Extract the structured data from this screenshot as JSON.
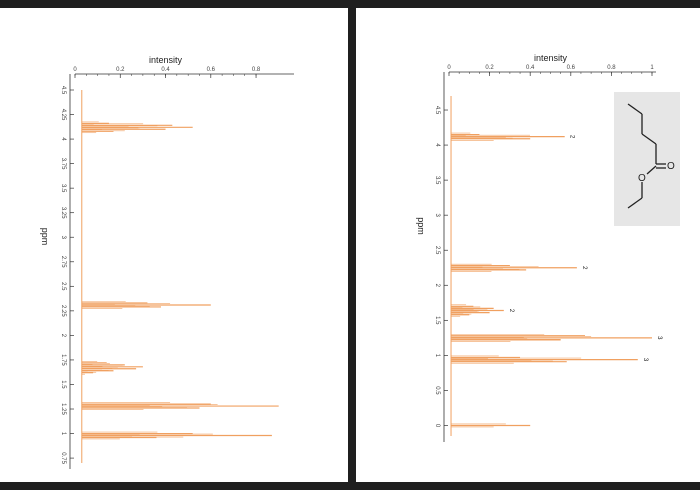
{
  "colors": {
    "spectrum": "#f0a060",
    "axis": "#333333",
    "background": "#1f1f1f",
    "panel": "#ffffff"
  },
  "chart_data": [
    {
      "type": "line",
      "orientation": "rotated-90",
      "xlabel": "ppm",
      "ylabel": "intensity",
      "ppm_ticks": [
        "4.5",
        "4.25",
        "4",
        "3.75",
        "3.5",
        "3.25",
        "3",
        "2.75",
        "2.5",
        "2.25",
        "2",
        "1.75",
        "1.5",
        "1.25",
        "1",
        "0.75"
      ],
      "ppm_tick_values": [
        4.5,
        4.25,
        4,
        3.75,
        3.5,
        3.25,
        3,
        2.75,
        2.5,
        2.25,
        2,
        1.75,
        1.5,
        1.25,
        1,
        0.75
      ],
      "intensity_ticks": [
        "0",
        "0.2",
        "0.4",
        "0.6",
        "0.8"
      ],
      "intensity_tick_values": [
        0,
        0.2,
        0.4,
        0.6,
        0.8
      ],
      "ppm_range": [
        4.5,
        0.7
      ],
      "intensity_range": [
        0,
        0.95
      ],
      "baseline": 0.03,
      "peaks": [
        {
          "ppm": 4.16,
          "intensity": 0.15
        },
        {
          "ppm": 4.14,
          "intensity": 0.43
        },
        {
          "ppm": 4.12,
          "intensity": 0.52
        },
        {
          "ppm": 4.1,
          "intensity": 0.4
        },
        {
          "ppm": 4.08,
          "intensity": 0.17
        },
        {
          "ppm": 2.33,
          "intensity": 0.32
        },
        {
          "ppm": 2.31,
          "intensity": 0.6
        },
        {
          "ppm": 2.29,
          "intensity": 0.38
        },
        {
          "ppm": 1.72,
          "intensity": 0.14
        },
        {
          "ppm": 1.7,
          "intensity": 0.22
        },
        {
          "ppm": 1.68,
          "intensity": 0.3
        },
        {
          "ppm": 1.66,
          "intensity": 0.27
        },
        {
          "ppm": 1.64,
          "intensity": 0.17
        },
        {
          "ppm": 1.62,
          "intensity": 0.08
        },
        {
          "ppm": 1.3,
          "intensity": 0.6
        },
        {
          "ppm": 1.28,
          "intensity": 0.9
        },
        {
          "ppm": 1.26,
          "intensity": 0.55
        },
        {
          "ppm": 1.0,
          "intensity": 0.52
        },
        {
          "ppm": 0.98,
          "intensity": 0.87
        },
        {
          "ppm": 0.96,
          "intensity": 0.36
        }
      ]
    },
    {
      "type": "line",
      "orientation": "rotated-90",
      "xlabel": "ppm",
      "ylabel": "intensity",
      "ppm_ticks": [
        "4.5",
        "4",
        "3.5",
        "3",
        "2.5",
        "2",
        "1.5",
        "1",
        "0.5",
        "0"
      ],
      "ppm_tick_values": [
        4.5,
        4,
        3.5,
        3,
        2.5,
        2,
        1.5,
        1,
        0.5,
        0
      ],
      "intensity_ticks": [
        "0",
        "0.2",
        "0.4",
        "0.6",
        "0.8",
        "1"
      ],
      "intensity_tick_values": [
        0,
        0.2,
        0.4,
        0.6,
        0.8,
        1
      ],
      "ppm_range": [
        4.7,
        -0.15
      ],
      "intensity_range": [
        0,
        1.0
      ],
      "baseline": 0.01,
      "peaks": [
        {
          "ppm": 4.15,
          "intensity": 0.15,
          "label": ""
        },
        {
          "ppm": 4.12,
          "intensity": 0.57,
          "label": "2"
        },
        {
          "ppm": 4.09,
          "intensity": 0.4,
          "label": ""
        },
        {
          "ppm": 2.28,
          "intensity": 0.3,
          "label": ""
        },
        {
          "ppm": 2.25,
          "intensity": 0.63,
          "label": "2"
        },
        {
          "ppm": 2.22,
          "intensity": 0.38,
          "label": ""
        },
        {
          "ppm": 1.7,
          "intensity": 0.12,
          "label": ""
        },
        {
          "ppm": 1.67,
          "intensity": 0.22,
          "label": ""
        },
        {
          "ppm": 1.64,
          "intensity": 0.27,
          "label": "2"
        },
        {
          "ppm": 1.61,
          "intensity": 0.2,
          "label": ""
        },
        {
          "ppm": 1.58,
          "intensity": 0.1,
          "label": ""
        },
        {
          "ppm": 1.28,
          "intensity": 0.67,
          "label": ""
        },
        {
          "ppm": 1.25,
          "intensity": 1.0,
          "label": "3"
        },
        {
          "ppm": 1.22,
          "intensity": 0.55,
          "label": ""
        },
        {
          "ppm": 0.97,
          "intensity": 0.35,
          "label": ""
        },
        {
          "ppm": 0.94,
          "intensity": 0.93,
          "label": "3"
        },
        {
          "ppm": 0.91,
          "intensity": 0.58,
          "label": ""
        },
        {
          "ppm": 0.0,
          "intensity": 0.4,
          "label": ""
        }
      ]
    }
  ],
  "molecule": {
    "atoms": [
      "O",
      "O"
    ]
  }
}
